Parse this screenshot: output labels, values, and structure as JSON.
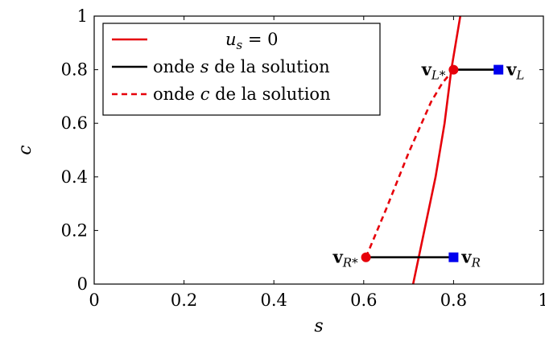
{
  "chart_data": {
    "type": "line",
    "xlabel": "s",
    "ylabel": "c",
    "xlim": [
      0,
      1
    ],
    "ylim": [
      0,
      1
    ],
    "x_ticks": [
      0,
      0.2,
      0.4,
      0.6,
      0.8,
      1
    ],
    "y_ticks": [
      0,
      0.2,
      0.4,
      0.6,
      0.8,
      1
    ],
    "x_tick_labels": [
      "0",
      "0.2",
      "0.4",
      "0.6",
      "0.8",
      "1"
    ],
    "y_tick_labels": [
      "0",
      "0.2",
      "0.4",
      "0.6",
      "0.8",
      "1"
    ],
    "grid": false,
    "legend_position": "top-left",
    "series": [
      {
        "name": "u_s = 0",
        "color": "#e6000a",
        "style": "solid",
        "x": [
          0.71,
          0.735,
          0.76,
          0.78,
          0.795,
          0.805,
          0.815
        ],
        "y": [
          0.0,
          0.2,
          0.4,
          0.6,
          0.8,
          0.9,
          1.0
        ]
      },
      {
        "name": "onde s de la solution",
        "color": "#000000",
        "style": "solid",
        "segments": [
          {
            "x": [
              0.8,
              0.9
            ],
            "y": [
              0.8,
              0.8
            ]
          },
          {
            "x": [
              0.605,
              0.8
            ],
            "y": [
              0.1,
              0.1
            ]
          }
        ]
      },
      {
        "name": "onde c de la solution",
        "color": "#e6000a",
        "style": "dashed",
        "x": [
          0.605,
          0.65,
          0.7,
          0.75,
          0.775,
          0.8
        ],
        "y": [
          0.1,
          0.28,
          0.49,
          0.68,
          0.75,
          0.8
        ]
      }
    ],
    "points": [
      {
        "label_main": "v",
        "label_sub": "L*",
        "x": 0.8,
        "y": 0.8,
        "marker": "circle",
        "color": "#e6000a",
        "label_side": "left"
      },
      {
        "label_main": "v",
        "label_sub": "L",
        "x": 0.9,
        "y": 0.8,
        "marker": "square",
        "color": "#0000ee",
        "label_side": "right"
      },
      {
        "label_main": "v",
        "label_sub": "R*",
        "x": 0.605,
        "y": 0.1,
        "marker": "circle",
        "color": "#e6000a",
        "label_side": "left"
      },
      {
        "label_main": "v",
        "label_sub": "R",
        "x": 0.8,
        "y": 0.1,
        "marker": "square",
        "color": "#0000ee",
        "label_side": "right"
      }
    ],
    "legend": [
      {
        "text_parts": [
          "u",
          "s",
          " = 0"
        ],
        "color": "#e6000a",
        "style": "solid"
      },
      {
        "text_parts": [
          "onde ",
          "s",
          " de la solution"
        ],
        "color": "#000000",
        "style": "solid"
      },
      {
        "text_parts": [
          "onde ",
          "c",
          " de la solution"
        ],
        "color": "#e6000a",
        "style": "dashed"
      }
    ]
  }
}
